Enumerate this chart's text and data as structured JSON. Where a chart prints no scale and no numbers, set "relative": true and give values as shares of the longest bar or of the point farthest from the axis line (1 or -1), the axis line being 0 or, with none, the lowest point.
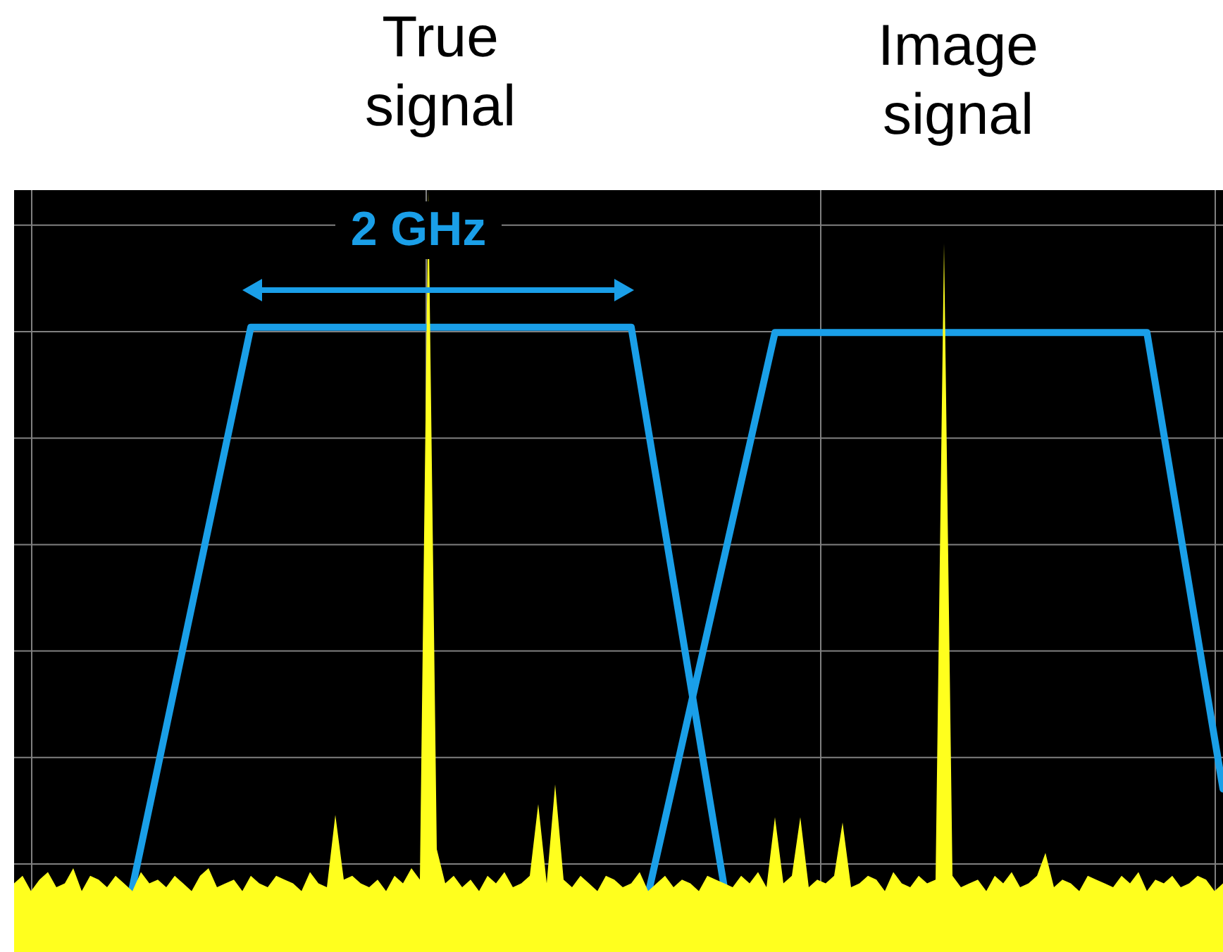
{
  "chart_data": {
    "type": "area",
    "relative": true,
    "grid": true,
    "legend": false,
    "marker": "none",
    "annotations": [
      "True signal",
      "Image signal",
      "2 GHz"
    ],
    "categories": [
      null,
      null,
      null,
      null,
      null,
      null,
      null,
      null,
      null,
      null,
      null,
      null,
      null,
      null,
      null,
      null,
      null,
      null,
      null,
      null,
      null,
      null,
      null,
      null,
      null,
      null,
      null,
      null,
      null,
      null,
      null,
      null,
      null,
      null,
      null,
      null,
      null,
      null,
      null,
      null,
      null,
      null,
      null,
      null,
      null,
      null,
      null,
      null,
      null,
      null,
      null,
      null,
      null,
      null,
      null,
      null,
      null,
      null,
      null,
      null,
      null,
      null,
      null,
      null,
      null,
      null,
      null,
      null,
      null,
      null,
      null,
      null,
      null,
      null,
      null,
      null,
      null,
      null,
      null,
      null,
      null,
      null,
      null,
      null,
      null,
      null,
      null,
      null,
      null,
      null,
      null,
      null,
      null,
      null,
      null,
      null,
      null,
      null,
      null,
      null,
      null,
      null,
      null,
      null,
      null,
      null,
      null,
      null,
      null,
      null,
      null,
      null,
      null,
      null,
      null,
      null,
      null,
      null,
      null,
      null,
      null,
      null,
      null,
      null,
      null,
      null,
      null,
      null,
      null,
      null,
      null,
      null,
      null,
      null,
      null,
      null,
      null,
      null,
      null,
      null,
      null,
      null,
      null,
      null
    ],
    "series": [
      {
        "color": "#ffff1e",
        "values": [
          0.09,
          0.1,
          0.08,
          0.095,
          0.105,
          0.085,
          0.09,
          0.11,
          0.08,
          0.1,
          0.095,
          0.085,
          0.1,
          0.09,
          0.08,
          0.105,
          0.09,
          0.095,
          0.085,
          0.1,
          0.09,
          0.08,
          0.1,
          0.11,
          0.085,
          0.09,
          0.095,
          0.08,
          0.1,
          0.09,
          0.085,
          0.1,
          0.095,
          0.09,
          0.08,
          0.105,
          0.09,
          0.085,
          0.18,
          0.095,
          0.1,
          0.09,
          0.085,
          0.095,
          0.08,
          0.1,
          0.09,
          0.11,
          0.095,
          1,
          0.135,
          0.09,
          0.1,
          0.085,
          0.095,
          0.08,
          0.1,
          0.09,
          0.105,
          0.085,
          0.09,
          0.1,
          0.194,
          0.09,
          0.22,
          0.095,
          0.085,
          0.1,
          0.09,
          0.08,
          0.1,
          0.095,
          0.085,
          0.09,
          0.105,
          0.08,
          0.09,
          0.1,
          0.085,
          0.095,
          0.09,
          0.08,
          0.1,
          0.095,
          0.09,
          0.085,
          0.1,
          0.09,
          0.105,
          0.085,
          0.177,
          0.09,
          0.1,
          0.177,
          0.085,
          0.095,
          0.09,
          0.1,
          0.17,
          0.085,
          0.09,
          0.1,
          0.095,
          0.08,
          0.105,
          0.09,
          0.085,
          0.1,
          0.09,
          0.095,
          0.93,
          0.1,
          0.085,
          0.09,
          0.095,
          0.08,
          0.1,
          0.09,
          0.105,
          0.085,
          0.09,
          0.1,
          0.13,
          0.085,
          0.095,
          0.09,
          0.08,
          0.1,
          0.095,
          0.09,
          0.085,
          0.1,
          0.09,
          0.105,
          0.08,
          0.095,
          0.09,
          0.1,
          0.085,
          0.09,
          0.1,
          0.095,
          0.08,
          0.09
        ]
      },
      {
        "type": "line",
        "color": "#1a9fe8",
        "values": [
          null,
          null,
          null,
          null,
          null,
          null,
          null,
          null,
          null,
          null,
          null,
          null,
          null,
          null,
          0.085,
          null,
          null,
          null,
          null,
          null,
          null,
          null,
          null,
          null,
          null,
          null,
          null,
          null,
          0.82,
          null,
          null,
          null,
          null,
          null,
          null,
          null,
          null,
          null,
          null,
          null,
          null,
          null,
          null,
          null,
          null,
          null,
          null,
          null,
          null,
          null,
          null,
          null,
          null,
          null,
          null,
          null,
          null,
          null,
          null,
          null,
          null,
          null,
          null,
          null,
          null,
          null,
          null,
          null,
          null,
          null,
          null,
          null,
          null,
          0.82,
          null,
          null,
          null,
          null,
          null,
          null,
          null,
          null,
          null,
          null,
          0.085,
          null,
          null,
          null,
          null,
          null,
          null,
          null,
          null,
          null,
          null,
          null,
          null,
          null,
          null,
          null,
          null,
          null,
          null,
          null,
          null,
          null,
          null,
          null,
          null,
          null,
          null,
          null,
          null,
          null,
          null,
          null,
          null,
          null,
          null,
          null,
          null,
          null,
          null,
          null,
          null,
          null,
          null,
          null,
          null,
          null,
          null,
          null,
          null,
          null,
          null,
          null,
          null,
          null,
          null,
          null,
          null,
          null,
          null,
          null
        ]
      },
      {
        "type": "line",
        "color": "#1a9fe8",
        "values": [
          null,
          null,
          null,
          null,
          null,
          null,
          null,
          null,
          null,
          null,
          null,
          null,
          null,
          null,
          null,
          null,
          null,
          null,
          null,
          null,
          null,
          null,
          null,
          null,
          null,
          null,
          null,
          null,
          null,
          null,
          null,
          null,
          null,
          null,
          null,
          null,
          null,
          null,
          null,
          null,
          null,
          null,
          null,
          null,
          null,
          null,
          null,
          null,
          null,
          null,
          null,
          null,
          null,
          null,
          null,
          null,
          null,
          null,
          null,
          null,
          null,
          null,
          null,
          null,
          null,
          null,
          null,
          null,
          null,
          null,
          null,
          null,
          null,
          null,
          null,
          0.076,
          null,
          null,
          null,
          null,
          null,
          null,
          null,
          null,
          null,
          null,
          null,
          null,
          null,
          null,
          0.813,
          null,
          null,
          null,
          null,
          null,
          null,
          null,
          null,
          null,
          null,
          null,
          null,
          null,
          null,
          null,
          null,
          null,
          null,
          null,
          null,
          null,
          null,
          null,
          null,
          null,
          null,
          null,
          null,
          null,
          null,
          null,
          null,
          null,
          null,
          null,
          null,
          null,
          null,
          null,
          null,
          null,
          null,
          null,
          0.813,
          null,
          null,
          null,
          null,
          null,
          null,
          null,
          null,
          0.214
        ]
      }
    ]
  }
}
